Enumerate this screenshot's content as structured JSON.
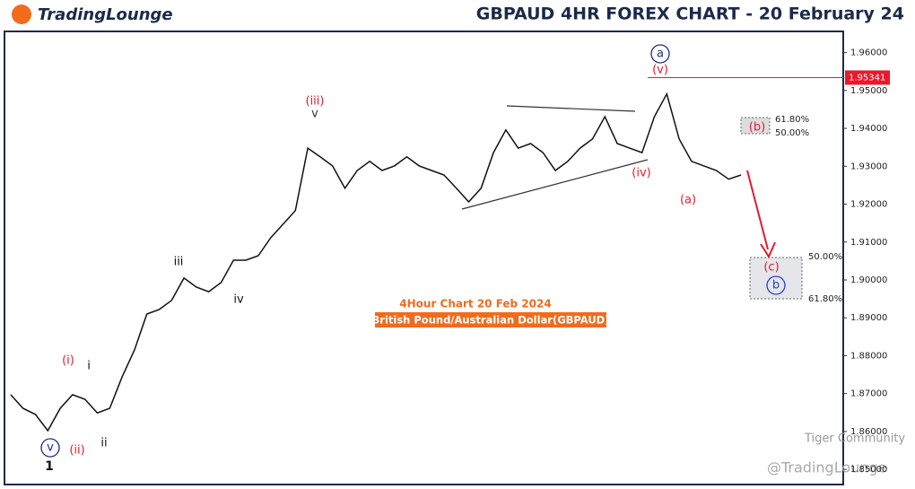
{
  "header": {
    "logo": "TradingLounge",
    "title": "GBPAUD 4HR FOREX CHART - 20 February 24"
  },
  "chart_data": {
    "type": "line",
    "subtitle": "4Hour Chart 20 Feb 2024",
    "caption": "British Pound/Australian Dollar(GBPAUD)",
    "categories": [
      null,
      null,
      null,
      null,
      null,
      null,
      null,
      null,
      null,
      null,
      null,
      null,
      null,
      null,
      null,
      null,
      null,
      null,
      null,
      null,
      null,
      null,
      null,
      null,
      null,
      null,
      null,
      null,
      null,
      null,
      null,
      null,
      null,
      null,
      null,
      null,
      null,
      null,
      null,
      null,
      null,
      null,
      null,
      null,
      null,
      null,
      null,
      null,
      null,
      null,
      null,
      null,
      null,
      null,
      null,
      null,
      null,
      null,
      null,
      null
    ],
    "values": [
      1.8697,
      1.8661,
      1.8645,
      1.8602,
      1.8661,
      1.8697,
      1.8685,
      1.8649,
      1.8661,
      1.8744,
      1.8815,
      1.891,
      1.8922,
      1.8946,
      1.9005,
      1.8981,
      1.8969,
      1.8993,
      1.9052,
      1.9052,
      1.9064,
      1.9111,
      1.9147,
      1.9183,
      1.9348,
      1.9325,
      1.9301,
      1.9242,
      1.9289,
      1.9313,
      1.9289,
      1.9301,
      1.9325,
      1.9301,
      1.9289,
      1.9277,
      1.9242,
      1.9206,
      1.9242,
      1.9336,
      1.9396,
      1.9348,
      1.936,
      1.9336,
      1.9289,
      1.9313,
      1.9348,
      1.9372,
      1.9431,
      1.936,
      1.9348,
      1.9336,
      1.9431,
      1.9491,
      1.9372,
      1.9313,
      1.9301,
      1.9289,
      1.9266,
      1.9277
    ],
    "color": "#111111",
    "ylim": [
      1.846,
      1.9656
    ],
    "yticks": [
      {
        "value": 1.96,
        "label": "1.96000"
      },
      {
        "value": 1.95,
        "label": "1.95000"
      },
      {
        "value": 1.94,
        "label": "1.94000"
      },
      {
        "value": 1.93,
        "label": "1.93000"
      },
      {
        "value": 1.92,
        "label": "1.92000"
      },
      {
        "value": 1.91,
        "label": "1.91000"
      },
      {
        "value": 1.9,
        "label": "1.90000"
      },
      {
        "value": 1.89,
        "label": "1.89000"
      },
      {
        "value": 1.88,
        "label": "1.88000"
      },
      {
        "value": 1.87,
        "label": "1.87000"
      },
      {
        "value": 1.86,
        "label": "1.86000"
      },
      {
        "value": 1.85,
        "label": "1.85000"
      }
    ],
    "price_line": 1.95341,
    "price_line_color": "#e8192c",
    "annotations": [
      "(i)",
      "(ii)",
      "i",
      "ii",
      "iii",
      "iv",
      "(iii)",
      "v",
      "(iv)",
      "a",
      "(v)",
      "(a)",
      "(b)",
      "(c)",
      "b",
      "v",
      "1"
    ],
    "fib_labels": [
      "61.80%",
      "50.00%",
      "50.00%",
      "61.80%"
    ],
    "watermarks": [
      "Tiger Community",
      "@TradingLounge"
    ]
  }
}
